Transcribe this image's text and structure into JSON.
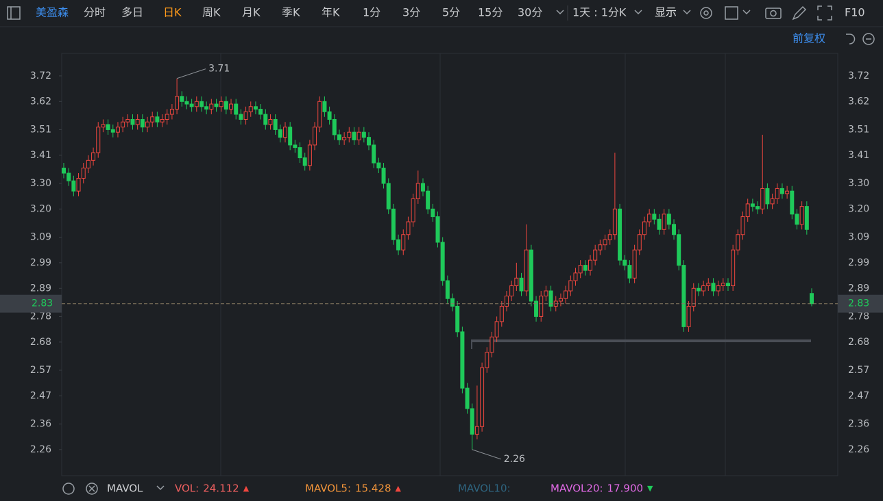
{
  "toolbar": {
    "symbol": "美盈森",
    "periods": [
      "分时",
      "多日",
      "日K",
      "周K",
      "月K",
      "季K",
      "年K",
      "1分",
      "3分",
      "5分",
      "15分",
      "30分"
    ],
    "active": "日K",
    "range": "1天 : 1分K",
    "display": "显示",
    "f10": "F10"
  },
  "adjust": "前复权",
  "chart_data": {
    "type": "candlestick",
    "up_color": "#f0473f",
    "down_color": "#1fc95a",
    "ylim": [
      2.158,
      3.808
    ],
    "yticks": [
      3.72,
      3.62,
      3.51,
      3.41,
      {
        "value": 3.3,
        "label": "3.30"
      },
      {
        "value": 3.2,
        "label": "3.20"
      },
      3.09,
      2.99,
      2.89,
      2.78,
      2.68,
      2.57,
      2.47,
      2.36,
      2.26
    ],
    "open": [
      3.36,
      3.34,
      3.31,
      3.27,
      3.32,
      3.36,
      3.39,
      3.42,
      3.52,
      3.53,
      3.51,
      3.5,
      3.52,
      3.54,
      3.55,
      3.53,
      3.55,
      3.52,
      3.54,
      3.56,
      3.54,
      3.55,
      3.57,
      3.59,
      3.64,
      3.62,
      3.61,
      3.6,
      3.62,
      3.6,
      3.59,
      3.61,
      3.6,
      3.62,
      3.59,
      3.61,
      3.57,
      3.55,
      3.58,
      3.6,
      3.59,
      3.57,
      3.53,
      3.55,
      3.51,
      3.48,
      3.52,
      3.45,
      3.44,
      3.4,
      3.37,
      3.45,
      3.52,
      3.62,
      3.58,
      3.55,
      3.49,
      3.47,
      3.48,
      3.5,
      3.47,
      3.5,
      3.48,
      3.45,
      3.38,
      3.36,
      3.3,
      3.2,
      3.08,
      3.04,
      3.1,
      3.15,
      3.24,
      3.3,
      3.27,
      3.2,
      3.17,
      3.07,
      2.92,
      2.85,
      2.82,
      2.72,
      2.5,
      2.42,
      2.32,
      2.35,
      2.58,
      2.64,
      2.7,
      2.76,
      2.82,
      2.86,
      2.9,
      2.93,
      2.88,
      3.04,
      2.84,
      2.78,
      2.86,
      2.88,
      2.82,
      2.84,
      2.85,
      2.88,
      2.92,
      2.95,
      2.98,
      2.96,
      3.0,
      3.04,
      3.06,
      3.08,
      3.1,
      3.2,
      3.0,
      2.98,
      2.93,
      3.04,
      3.1,
      3.15,
      3.18,
      3.16,
      3.12,
      3.18,
      3.14,
      3.1,
      2.98,
      2.74,
      2.82,
      2.89,
      2.88,
      2.9,
      2.91,
      2.88,
      2.9,
      2.91,
      2.9,
      3.04,
      3.1,
      3.17,
      3.22,
      3.21,
      3.2,
      3.28,
      3.22,
      3.24,
      3.28,
      3.26,
      3.27,
      3.18,
      3.14,
      3.21,
      2.87
    ],
    "high": [
      3.38,
      3.36,
      3.33,
      3.34,
      3.38,
      3.41,
      3.44,
      3.54,
      3.55,
      3.55,
      3.53,
      3.54,
      3.56,
      3.57,
      3.57,
      3.57,
      3.57,
      3.56,
      3.58,
      3.58,
      3.57,
      3.59,
      3.61,
      3.71,
      3.66,
      3.64,
      3.63,
      3.64,
      3.64,
      3.62,
      3.63,
      3.63,
      3.64,
      3.64,
      3.63,
      3.63,
      3.59,
      3.6,
      3.62,
      3.62,
      3.61,
      3.59,
      3.57,
      3.57,
      3.53,
      3.54,
      3.54,
      3.47,
      3.46,
      3.42,
      3.47,
      3.54,
      3.64,
      3.64,
      3.6,
      3.57,
      3.51,
      3.5,
      3.52,
      3.52,
      3.52,
      3.52,
      3.5,
      3.47,
      3.4,
      3.38,
      3.32,
      3.22,
      3.1,
      3.12,
      3.17,
      3.26,
      3.35,
      3.32,
      3.29,
      3.22,
      3.19,
      3.09,
      2.94,
      2.87,
      2.84,
      2.74,
      2.52,
      2.44,
      2.51,
      2.6,
      2.66,
      2.72,
      2.78,
      2.84,
      2.88,
      2.92,
      2.99,
      2.95,
      3.14,
      3.06,
      2.86,
      2.88,
      2.9,
      2.9,
      2.86,
      2.87,
      2.9,
      2.94,
      2.97,
      3.0,
      3.0,
      3.02,
      3.06,
      3.08,
      3.1,
      3.12,
      3.42,
      3.22,
      3.02,
      3.0,
      3.06,
      3.12,
      3.17,
      3.2,
      3.2,
      3.18,
      3.2,
      3.2,
      3.16,
      3.12,
      3.0,
      2.84,
      2.91,
      2.91,
      2.92,
      2.93,
      2.93,
      2.92,
      2.93,
      2.93,
      3.06,
      3.12,
      3.19,
      3.24,
      3.24,
      3.23,
      3.49,
      3.3,
      3.26,
      3.3,
      3.3,
      3.29,
      3.29,
      3.2,
      3.23,
      3.23,
      2.89
    ],
    "low": [
      3.32,
      3.29,
      3.25,
      3.25,
      3.3,
      3.34,
      3.37,
      3.4,
      3.5,
      3.49,
      3.48,
      3.48,
      3.5,
      3.52,
      3.51,
      3.51,
      3.5,
      3.5,
      3.52,
      3.52,
      3.52,
      3.53,
      3.55,
      3.57,
      3.6,
      3.59,
      3.58,
      3.58,
      3.58,
      3.57,
      3.57,
      3.58,
      3.58,
      3.57,
      3.57,
      3.55,
      3.53,
      3.53,
      3.56,
      3.57,
      3.55,
      3.51,
      3.51,
      3.49,
      3.46,
      3.46,
      3.43,
      3.42,
      3.38,
      3.35,
      3.35,
      3.43,
      3.5,
      3.56,
      3.53,
      3.47,
      3.45,
      3.45,
      3.46,
      3.45,
      3.45,
      3.46,
      3.43,
      3.36,
      3.34,
      3.28,
      3.18,
      3.06,
      3.02,
      3.02,
      3.08,
      3.13,
      3.22,
      3.25,
      3.18,
      3.15,
      3.05,
      2.9,
      2.83,
      2.8,
      2.7,
      2.48,
      2.4,
      2.26,
      2.3,
      2.33,
      2.56,
      2.62,
      2.68,
      2.74,
      2.8,
      2.84,
      2.88,
      2.86,
      2.86,
      2.82,
      2.76,
      2.76,
      2.84,
      2.8,
      2.8,
      2.82,
      2.83,
      2.86,
      2.9,
      2.93,
      2.94,
      2.94,
      2.98,
      3.02,
      3.04,
      3.06,
      3.08,
      2.98,
      2.96,
      2.91,
      2.91,
      3.02,
      3.08,
      3.13,
      3.14,
      3.1,
      3.1,
      3.12,
      3.08,
      2.96,
      2.72,
      2.72,
      2.8,
      2.86,
      2.86,
      2.88,
      2.86,
      2.86,
      2.88,
      2.88,
      2.88,
      3.02,
      3.08,
      3.15,
      3.19,
      3.18,
      3.18,
      3.2,
      3.2,
      3.22,
      3.24,
      3.24,
      3.16,
      3.12,
      3.12,
      3.1,
      2.82
    ],
    "close": [
      3.34,
      3.31,
      3.27,
      3.32,
      3.36,
      3.39,
      3.42,
      3.52,
      3.53,
      3.51,
      3.5,
      3.52,
      3.54,
      3.55,
      3.53,
      3.55,
      3.52,
      3.54,
      3.56,
      3.54,
      3.55,
      3.57,
      3.59,
      3.64,
      3.62,
      3.61,
      3.6,
      3.62,
      3.6,
      3.59,
      3.61,
      3.6,
      3.62,
      3.59,
      3.61,
      3.57,
      3.55,
      3.58,
      3.6,
      3.59,
      3.57,
      3.53,
      3.55,
      3.51,
      3.48,
      3.52,
      3.45,
      3.44,
      3.4,
      3.37,
      3.45,
      3.52,
      3.62,
      3.58,
      3.55,
      3.49,
      3.47,
      3.48,
      3.5,
      3.47,
      3.5,
      3.48,
      3.45,
      3.38,
      3.36,
      3.3,
      3.2,
      3.08,
      3.04,
      3.1,
      3.15,
      3.24,
      3.3,
      3.27,
      3.2,
      3.17,
      3.07,
      2.92,
      2.85,
      2.82,
      2.72,
      2.5,
      2.42,
      2.32,
      2.35,
      2.58,
      2.64,
      2.7,
      2.76,
      2.82,
      2.86,
      2.9,
      2.93,
      2.88,
      3.04,
      2.84,
      2.78,
      2.86,
      2.88,
      2.82,
      2.84,
      2.85,
      2.88,
      2.92,
      2.95,
      2.98,
      2.96,
      3.0,
      3.04,
      3.06,
      3.08,
      3.1,
      3.2,
      3.0,
      2.98,
      2.93,
      3.04,
      3.1,
      3.15,
      3.18,
      3.16,
      3.12,
      3.18,
      3.14,
      3.1,
      2.98,
      2.74,
      2.82,
      2.89,
      2.88,
      2.9,
      2.91,
      2.88,
      2.9,
      2.91,
      2.9,
      3.04,
      3.1,
      3.17,
      3.22,
      3.21,
      3.2,
      3.28,
      3.22,
      3.24,
      3.28,
      3.26,
      3.27,
      3.18,
      3.14,
      3.21,
      3.12,
      2.83
    ]
  },
  "indicator_bar": {
    "name": "MAVOL",
    "items": [
      {
        "label": "VOL:",
        "value": "24.112",
        "color": "#f06060",
        "trend": "▲"
      },
      {
        "label": "MAVOL5:",
        "value": "15.428",
        "color": "#f3953a",
        "trend": "▲"
      },
      {
        "label": "MAVOL10:",
        "color": "#2e6580"
      },
      {
        "label": "MAVOL20:",
        "value": "17.900",
        "color": "#e26ae6",
        "trend": "▼"
      }
    ]
  }
}
